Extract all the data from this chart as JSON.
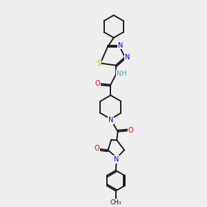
{
  "bg_color": "#eeeeee",
  "bond_color": "#1a1a1a",
  "atom_colors": {
    "N": "#0000ee",
    "O": "#ee0000",
    "S": "#bbbb00",
    "NH": "#44aaaa",
    "C": "#1a1a1a"
  },
  "lw": 1.4
}
